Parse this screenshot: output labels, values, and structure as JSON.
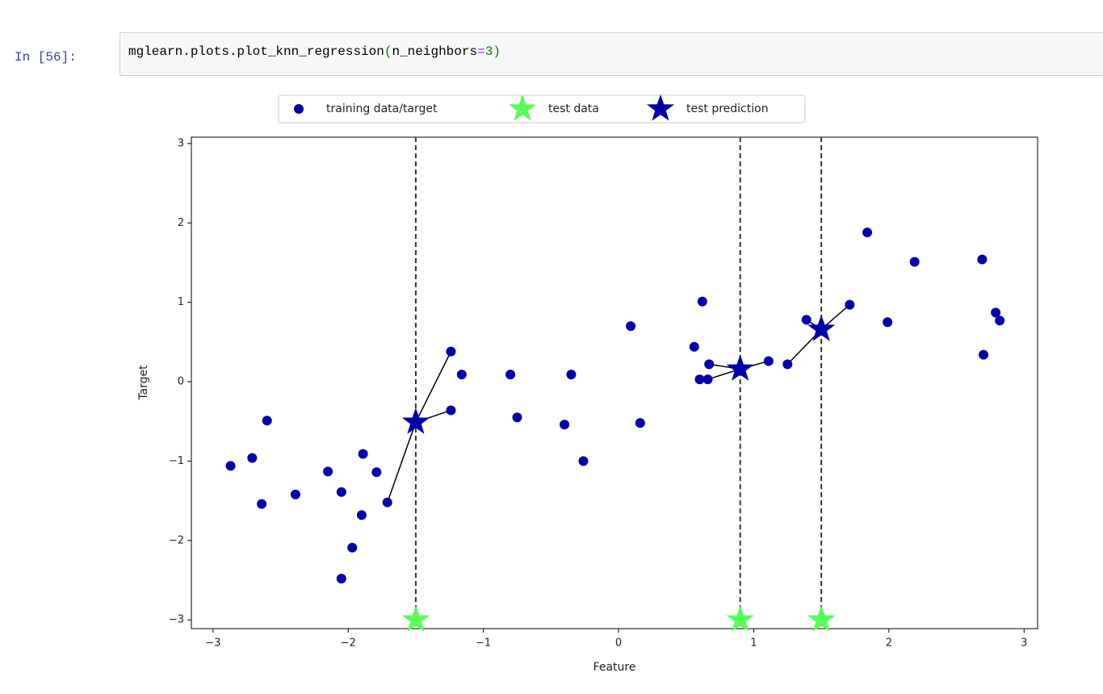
{
  "cell": {
    "prompt": "In [56]:",
    "code_tokens": [
      "mglearn.plots.plot_knn_regression",
      "(",
      "n_neighbors",
      "=",
      "3",
      ")"
    ]
  },
  "chart_data": {
    "type": "scatter",
    "xlabel": "Feature",
    "ylabel": "Target",
    "xlim": [
      -3.16,
      3.1
    ],
    "ylim": [
      -3.11,
      3.08
    ],
    "xticks": [
      {
        "value": -3,
        "label": "−3"
      },
      {
        "value": -2,
        "label": "−2"
      },
      {
        "value": -1,
        "label": "−1"
      },
      0,
      1,
      2,
      3
    ],
    "yticks": [
      {
        "value": -3,
        "label": "−3"
      },
      {
        "value": -2,
        "label": "−2"
      },
      {
        "value": -1,
        "label": "−1"
      },
      0,
      1,
      2,
      3
    ],
    "grid": false,
    "legend": "upper center",
    "series": [
      {
        "name": "training data/target",
        "color": "#0000aa",
        "marker": "circle",
        "x": [
          -2.87,
          -2.71,
          -2.64,
          -2.6,
          -2.39,
          -2.15,
          -2.05,
          -2.05,
          -1.97,
          -1.9,
          -1.89,
          -1.79,
          -1.71,
          -1.24,
          -1.24,
          -1.16,
          -0.8,
          -0.75,
          -0.4,
          -0.35,
          -0.26,
          0.09,
          0.16,
          0.56,
          0.6,
          0.62,
          0.66,
          0.67,
          1.11,
          1.25,
          1.39,
          1.71,
          1.84,
          1.99,
          2.19,
          2.69,
          2.7,
          2.79,
          2.82
        ],
        "values": [
          -1.06,
          -0.96,
          -1.54,
          -0.49,
          -1.42,
          -1.13,
          -1.39,
          -2.48,
          -2.09,
          -1.68,
          -0.91,
          -1.14,
          -1.52,
          0.38,
          -0.36,
          0.09,
          0.09,
          -0.45,
          -0.54,
          0.09,
          -1.0,
          0.7,
          -0.52,
          0.44,
          0.03,
          1.01,
          0.03,
          0.22,
          0.26,
          0.22,
          0.78,
          0.97,
          1.88,
          0.75,
          1.51,
          1.54,
          0.34,
          0.87,
          0.77
        ]
      },
      {
        "name": "test data",
        "color": "#55ff55",
        "marker": "star",
        "x": [
          -1.5,
          0.9,
          1.5
        ],
        "values": [
          -3,
          -3,
          -3
        ]
      },
      {
        "name": "test prediction",
        "color": "#0000aa",
        "marker": "star",
        "x": [
          -1.5,
          0.9,
          1.5
        ],
        "values": [
          -0.51,
          0.16,
          0.66
        ]
      }
    ]
  }
}
